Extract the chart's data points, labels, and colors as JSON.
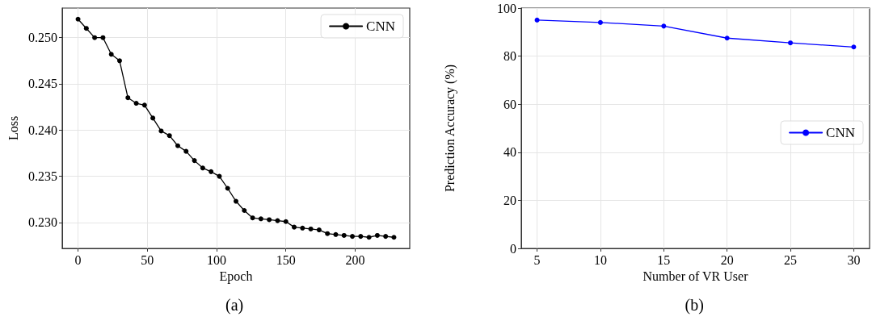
{
  "chart_data": [
    {
      "type": "line",
      "xlabel": "Epoch",
      "ylabel": "Loss",
      "annotations": [
        "(a)"
      ],
      "legend": "top right",
      "grid": true,
      "marker": "circle",
      "line_style": "solid",
      "xlim": [
        -11.4,
        239.4
      ],
      "xticks": [
        0,
        50,
        100,
        150,
        200
      ],
      "ylim": [
        0.2272,
        0.2532
      ],
      "yticks": [
        {
          "value": 0.23,
          "label": "0.230"
        },
        0.235,
        {
          "value": 0.24,
          "label": "0.240"
        },
        0.245,
        {
          "value": 0.25,
          "label": "0.250"
        }
      ],
      "x": [
        0,
        6,
        12,
        18,
        24,
        30,
        36,
        42,
        48,
        54,
        60,
        66,
        72,
        78,
        84,
        90,
        96,
        102,
        108,
        114,
        120,
        126,
        132,
        138,
        144,
        150,
        156,
        162,
        168,
        174,
        180,
        186,
        192,
        198,
        204,
        210,
        216,
        222,
        228
      ],
      "series": [
        {
          "name": "CNN",
          "color": "#000000",
          "values": [
            0.252,
            0.251,
            0.25,
            0.25,
            0.2482,
            0.2475,
            0.2435,
            0.2429,
            0.2427,
            0.2413,
            0.2399,
            0.2394,
            0.2383,
            0.2377,
            0.2367,
            0.2359,
            0.2355,
            0.235,
            0.2337,
            0.2323,
            0.2313,
            0.2305,
            0.2304,
            0.2303,
            0.2302,
            0.2301,
            0.2295,
            0.2294,
            0.2293,
            0.2292,
            0.2288,
            0.2287,
            0.2286,
            0.2285,
            0.2285,
            0.2284,
            0.2286,
            0.2285,
            0.2284
          ]
        }
      ]
    },
    {
      "type": "line",
      "xlabel": "Number of VR User",
      "ylabel": "Prediction Accuracy (%)",
      "annotations": [
        "(b)"
      ],
      "legend": "right",
      "grid": true,
      "marker": "circle",
      "line_style": "solid",
      "xlim": [
        3.75,
        31.25
      ],
      "xticks": [
        5,
        10,
        15,
        20,
        25,
        30
      ],
      "ylim": [
        0,
        100
      ],
      "yticks": [
        0,
        20,
        40,
        60,
        80,
        100
      ],
      "x": [
        5,
        10,
        15,
        20,
        25,
        30
      ],
      "series": [
        {
          "name": "CNN",
          "color": "#0000ff",
          "values": [
            95.0,
            94.0,
            92.5,
            87.5,
            85.5,
            83.8
          ]
        }
      ]
    }
  ]
}
